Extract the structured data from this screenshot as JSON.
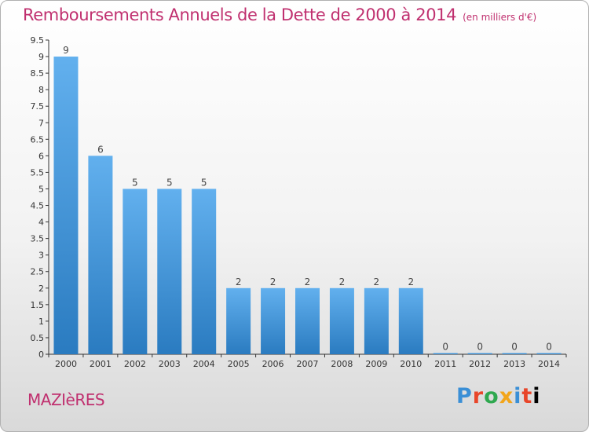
{
  "title": "Remboursements Annuels de la Dette de 2000 à 2014",
  "unit_note": "(en milliers d'€)",
  "commune": "MAZIèRES",
  "brand": [
    "P",
    "r",
    "o",
    "x",
    "i",
    "t",
    "i"
  ],
  "colors": {
    "title": "#c0306f",
    "bar_top": "#62b0ee",
    "bar_bottom": "#2a7bc0",
    "axis": "#333333"
  },
  "chart_data": {
    "type": "bar",
    "title": "Remboursements Annuels de la Dette de 2000 à 2014",
    "categories": [
      "2000",
      "2001",
      "2002",
      "2003",
      "2004",
      "2005",
      "2006",
      "2007",
      "2008",
      "2009",
      "2010",
      "2011",
      "2012",
      "2013",
      "2014"
    ],
    "values": [
      9,
      6,
      5,
      5,
      5,
      2,
      2,
      2,
      2,
      2,
      2,
      0,
      0,
      0,
      0
    ],
    "value_labels": [
      "9",
      "6",
      "5",
      "5",
      "5",
      "2",
      "2",
      "2",
      "2",
      "2",
      "2",
      "0",
      "0",
      "0",
      "0"
    ],
    "y_ticks": [
      "0",
      "0.5",
      "1",
      "1.5",
      "2",
      "2.5",
      "3",
      "3.5",
      "4",
      "4.5",
      "5",
      "5.5",
      "6",
      "6.5",
      "7",
      "7.5",
      "8",
      "8.5",
      "9",
      "9.5"
    ],
    "ylim": [
      0,
      9.5
    ],
    "xlabel": "",
    "ylabel": "",
    "grid": false,
    "legend": "none"
  }
}
